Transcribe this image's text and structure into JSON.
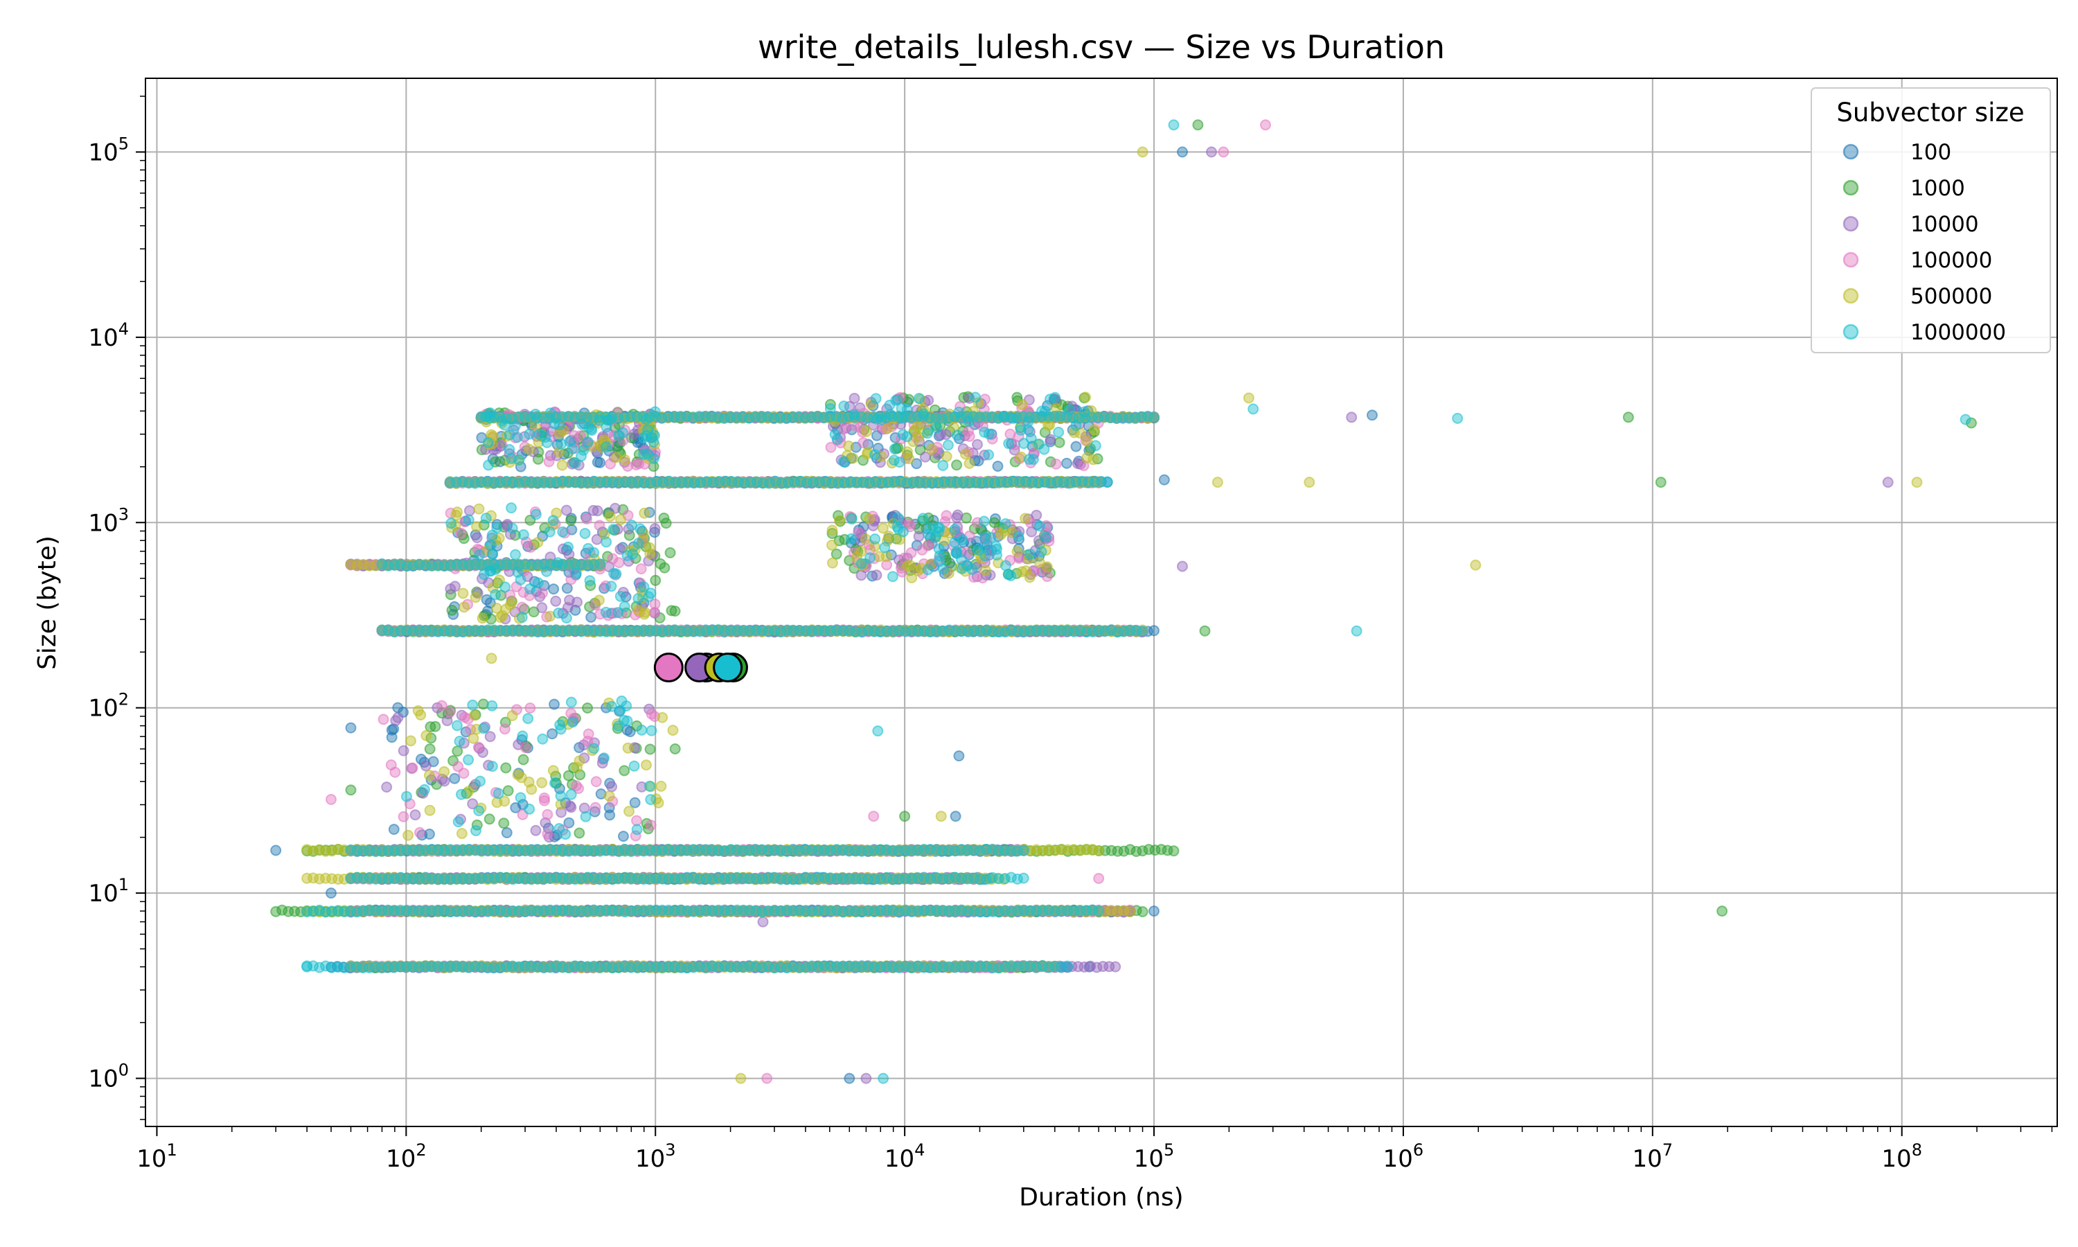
{
  "chart_data": {
    "type": "scatter",
    "title": "write_details_lulesh.csv — Size vs Duration",
    "xlabel": "Duration (ns)",
    "ylabel": "Size (byte)",
    "xscale": "log",
    "yscale": "log",
    "xlim": [
      9,
      420000000
    ],
    "ylim": [
      0.55,
      250000
    ],
    "grid": true,
    "x_ticks": [
      10,
      100,
      1000,
      10000,
      100000,
      1000000,
      10000000,
      100000000
    ],
    "x_tick_labels": [
      {
        "b": "10",
        "e": "1"
      },
      {
        "b": "10",
        "e": "2"
      },
      {
        "b": "10",
        "e": "3"
      },
      {
        "b": "10",
        "e": "4"
      },
      {
        "b": "10",
        "e": "5"
      },
      {
        "b": "10",
        "e": "6"
      },
      {
        "b": "10",
        "e": "7"
      },
      {
        "b": "10",
        "e": "8"
      }
    ],
    "y_ticks": [
      1,
      10,
      100,
      1000,
      10000,
      100000
    ],
    "y_tick_labels": [
      {
        "b": "10",
        "e": "0"
      },
      {
        "b": "10",
        "e": "1"
      },
      {
        "b": "10",
        "e": "2"
      },
      {
        "b": "10",
        "e": "3"
      },
      {
        "b": "10",
        "e": "4"
      },
      {
        "b": "10",
        "e": "5"
      }
    ],
    "legend": {
      "title": "Subvector size",
      "position": "top-right",
      "entries": [
        "100",
        "1000",
        "10000",
        "100000",
        "500000",
        "1000000"
      ]
    },
    "colors": [
      "#1f77b4",
      "#2ca02c",
      "#9467bd",
      "#e377c2",
      "#bcbd22",
      "#17becf"
    ],
    "series": [
      {
        "name": "100",
        "bands": [
          {
            "y": 4,
            "x": [
              50,
              45000
            ]
          },
          {
            "y": 8,
            "x": [
              60,
              80000
            ]
          },
          {
            "y": 12,
            "x": [
              80,
              22000
            ]
          },
          {
            "y": 17,
            "x": [
              60,
              28000
            ]
          },
          {
            "y": 260,
            "x": [
              80,
              100000
            ]
          },
          {
            "y": 590,
            "x": [
              60,
              600
            ]
          },
          {
            "y": 1650,
            "x": [
              200,
              65000
            ]
          },
          {
            "y": 3700,
            "x": [
              200,
              100000
            ]
          }
        ],
        "clouds": [
          {
            "x": [
              150,
              1000
            ],
            "y": [
              300,
              1200
            ],
            "n": 45
          },
          {
            "x": [
              6000,
              40000
            ],
            "y": [
              500,
              1100
            ],
            "n": 45
          },
          {
            "x": [
              200,
              1000
            ],
            "y": [
              2000,
              4000
            ],
            "n": 40
          },
          {
            "x": [
              5000,
              60000
            ],
            "y": [
              2000,
              4800
            ],
            "n": 45
          },
          {
            "x": [
              80,
              1000
            ],
            "y": [
              20,
              110
            ],
            "n": 40
          }
        ],
        "points": [
          {
            "x": 30,
            "y": 17
          },
          {
            "x": 50,
            "y": 10
          },
          {
            "x": 60,
            "y": 78
          },
          {
            "x": 16500,
            "y": 55
          },
          {
            "x": 16000,
            "y": 26
          },
          {
            "x": 100000,
            "y": 8
          },
          {
            "x": 110000,
            "y": 1700
          },
          {
            "x": 750000,
            "y": 3800
          },
          {
            "x": 130000,
            "y": 100000
          },
          {
            "x": 6000,
            "y": 1
          },
          {
            "x": 55000,
            "y": 4
          }
        ],
        "highlight": {
          "x": 1600,
          "y": 165
        }
      },
      {
        "name": "1000",
        "bands": [
          {
            "y": 4,
            "x": [
              60,
              40000
            ]
          },
          {
            "y": 8,
            "x": [
              30,
              90000
            ]
          },
          {
            "y": 12,
            "x": [
              60,
              20000
            ]
          },
          {
            "y": 17,
            "x": [
              40,
              120000
            ]
          },
          {
            "y": 260,
            "x": [
              100,
              80000
            ]
          },
          {
            "y": 590,
            "x": [
              80,
              600
            ]
          },
          {
            "y": 1650,
            "x": [
              150,
              60000
            ]
          },
          {
            "y": 3700,
            "x": [
              200,
              100000
            ]
          }
        ],
        "clouds": [
          {
            "x": [
              150,
              1200
            ],
            "y": [
              300,
              1200
            ],
            "n": 45
          },
          {
            "x": [
              5000,
              40000
            ],
            "y": [
              500,
              1100
            ],
            "n": 45
          },
          {
            "x": [
              200,
              1000
            ],
            "y": [
              2000,
              4000
            ],
            "n": 40
          },
          {
            "x": [
              5000,
              60000
            ],
            "y": [
              2000,
              4800
            ],
            "n": 45
          },
          {
            "x": [
              100,
              1200
            ],
            "y": [
              20,
              110
            ],
            "n": 40
          }
        ],
        "points": [
          {
            "x": 60,
            "y": 36
          },
          {
            "x": 160000,
            "y": 260
          },
          {
            "x": 8000000,
            "y": 3700
          },
          {
            "x": 10800000,
            "y": 1650
          },
          {
            "x": 19000000,
            "y": 8
          },
          {
            "x": 190000000,
            "y": 3450
          },
          {
            "x": 10000,
            "y": 26
          },
          {
            "x": 1200,
            "y": 60
          },
          {
            "x": 8000,
            "y": 17
          },
          {
            "x": 150000,
            "y": 140000
          }
        ],
        "highlight": {
          "x": 2050,
          "y": 165
        }
      },
      {
        "name": "10000",
        "bands": [
          {
            "y": 4,
            "x": [
              60,
              70000
            ]
          },
          {
            "y": 8,
            "x": [
              60,
              80000
            ]
          },
          {
            "y": 12,
            "x": [
              60,
              20000
            ]
          },
          {
            "y": 17,
            "x": [
              60,
              30000
            ]
          },
          {
            "y": 260,
            "x": [
              80,
              90000
            ]
          },
          {
            "y": 590,
            "x": [
              60,
              600
            ]
          },
          {
            "y": 1650,
            "x": [
              150,
              60000
            ]
          },
          {
            "y": 3700,
            "x": [
              200,
              100000
            ]
          }
        ],
        "clouds": [
          {
            "x": [
              150,
              1000
            ],
            "y": [
              300,
              1200
            ],
            "n": 45
          },
          {
            "x": [
              6000,
              40000
            ],
            "y": [
              500,
              1100
            ],
            "n": 45
          },
          {
            "x": [
              200,
              1000
            ],
            "y": [
              2000,
              4000
            ],
            "n": 40
          },
          {
            "x": [
              5000,
              60000
            ],
            "y": [
              2000,
              4800
            ],
            "n": 45
          },
          {
            "x": [
              80,
              1000
            ],
            "y": [
              20,
              110
            ],
            "n": 40
          }
        ],
        "points": [
          {
            "x": 130000,
            "y": 580
          },
          {
            "x": 620000,
            "y": 3700
          },
          {
            "x": 88000000,
            "y": 1650
          },
          {
            "x": 2700,
            "y": 7
          },
          {
            "x": 170000,
            "y": 100000
          },
          {
            "x": 7000,
            "y": 1
          }
        ],
        "highlight": {
          "x": 1500,
          "y": 165
        }
      },
      {
        "name": "100000",
        "bands": [
          {
            "y": 4,
            "x": [
              60,
              40000
            ]
          },
          {
            "y": 8,
            "x": [
              60,
              80000
            ]
          },
          {
            "y": 12,
            "x": [
              60,
              20000
            ]
          },
          {
            "y": 17,
            "x": [
              60,
              30000
            ]
          },
          {
            "y": 260,
            "x": [
              80,
              90000
            ]
          },
          {
            "y": 590,
            "x": [
              60,
              600
            ]
          },
          {
            "y": 1650,
            "x": [
              150,
              60000
            ]
          },
          {
            "y": 3700,
            "x": [
              200,
              100000
            ]
          }
        ],
        "clouds": [
          {
            "x": [
              150,
              1000
            ],
            "y": [
              300,
              1200
            ],
            "n": 45
          },
          {
            "x": [
              6000,
              40000
            ],
            "y": [
              500,
              1100
            ],
            "n": 45
          },
          {
            "x": [
              200,
              1000
            ],
            "y": [
              2000,
              4000
            ],
            "n": 40
          },
          {
            "x": [
              5000,
              60000
            ],
            "y": [
              2000,
              4800
            ],
            "n": 45
          },
          {
            "x": [
              80,
              1000
            ],
            "y": [
              20,
              110
            ],
            "n": 40
          }
        ],
        "points": [
          {
            "x": 50,
            "y": 32
          },
          {
            "x": 150,
            "y": 95
          },
          {
            "x": 7500,
            "y": 26
          },
          {
            "x": 60000,
            "y": 12
          },
          {
            "x": 280000,
            "y": 140000
          },
          {
            "x": 2800,
            "y": 1
          },
          {
            "x": 190000,
            "y": 100000
          }
        ],
        "highlight": {
          "x": 1130,
          "y": 165
        }
      },
      {
        "name": "500000",
        "bands": [
          {
            "y": 4,
            "x": [
              60,
              40000
            ]
          },
          {
            "y": 8,
            "x": [
              40,
              80000
            ]
          },
          {
            "y": 12,
            "x": [
              40,
              25000
            ]
          },
          {
            "y": 17,
            "x": [
              40,
              60000
            ]
          },
          {
            "y": 260,
            "x": [
              80,
              90000
            ]
          },
          {
            "y": 590,
            "x": [
              60,
              600
            ]
          },
          {
            "y": 1650,
            "x": [
              150,
              60000
            ]
          },
          {
            "y": 3700,
            "x": [
              200,
              100000
            ]
          }
        ],
        "clouds": [
          {
            "x": [
              150,
              1000
            ],
            "y": [
              300,
              1200
            ],
            "n": 45
          },
          {
            "x": [
              5000,
              40000
            ],
            "y": [
              500,
              1100
            ],
            "n": 45
          },
          {
            "x": [
              200,
              1000
            ],
            "y": [
              2000,
              4000
            ],
            "n": 40
          },
          {
            "x": [
              5000,
              60000
            ],
            "y": [
              2000,
              4800
            ],
            "n": 45
          },
          {
            "x": [
              100,
              1200
            ],
            "y": [
              20,
              110
            ],
            "n": 40
          }
        ],
        "points": [
          {
            "x": 180000,
            "y": 1650
          },
          {
            "x": 420000,
            "y": 1650
          },
          {
            "x": 1950000,
            "y": 590
          },
          {
            "x": 115000000,
            "y": 1650
          },
          {
            "x": 240000,
            "y": 4700
          },
          {
            "x": 2200,
            "y": 1
          },
          {
            "x": 220,
            "y": 185
          },
          {
            "x": 90000,
            "y": 100000
          },
          {
            "x": 14000,
            "y": 26
          }
        ],
        "highlight": {
          "x": 1800,
          "y": 165
        }
      },
      {
        "name": "1000000",
        "bands": [
          {
            "y": 4,
            "x": [
              40,
              45000
            ]
          },
          {
            "y": 8,
            "x": [
              40,
              60000
            ]
          },
          {
            "y": 12,
            "x": [
              60,
              30000
            ]
          },
          {
            "y": 17,
            "x": [
              60,
              30000
            ]
          },
          {
            "y": 260,
            "x": [
              80,
              90000
            ]
          },
          {
            "y": 590,
            "x": [
              80,
              600
            ]
          },
          {
            "y": 1650,
            "x": [
              150,
              65000
            ]
          },
          {
            "y": 3700,
            "x": [
              200,
              100000
            ]
          }
        ],
        "clouds": [
          {
            "x": [
              150,
              1000
            ],
            "y": [
              300,
              1200
            ],
            "n": 55
          },
          {
            "x": [
              6000,
              40000
            ],
            "y": [
              500,
              1100
            ],
            "n": 50
          },
          {
            "x": [
              200,
              1000
            ],
            "y": [
              2000,
              4000
            ],
            "n": 50
          },
          {
            "x": [
              5000,
              60000
            ],
            "y": [
              2000,
              4800
            ],
            "n": 55
          },
          {
            "x": [
              100,
              1000
            ],
            "y": [
              20,
              110
            ],
            "n": 45
          }
        ],
        "points": [
          {
            "x": 40,
            "y": 4
          },
          {
            "x": 7800,
            "y": 75
          },
          {
            "x": 650000,
            "y": 260
          },
          {
            "x": 1650000,
            "y": 3650
          },
          {
            "x": 180000000,
            "y": 3600
          },
          {
            "x": 250000,
            "y": 4100
          },
          {
            "x": 8200,
            "y": 1
          },
          {
            "x": 120000,
            "y": 140000
          }
        ],
        "highlight": {
          "x": 1950,
          "y": 165
        }
      }
    ]
  }
}
